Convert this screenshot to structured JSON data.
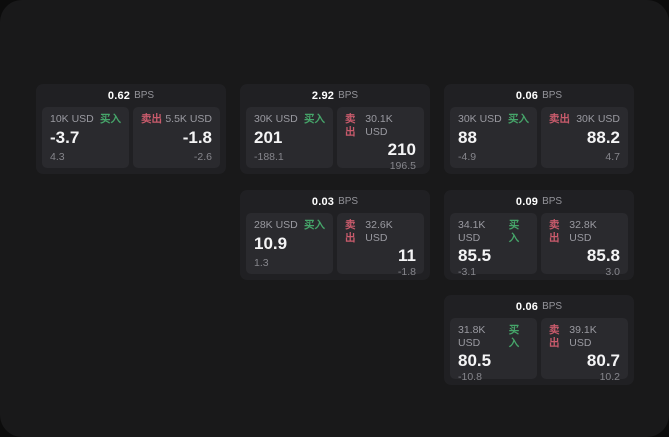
{
  "labels": {
    "bps_unit": "BPS",
    "buy": "买入",
    "sell": "卖出"
  },
  "colors": {
    "buy_green": "#46a56a",
    "sell_red": "#c95b6c",
    "page_bg": "#19191a",
    "card_bg": "#202023",
    "panel_bg": "#2a2a2e"
  },
  "cards": [
    {
      "bps": "0.62",
      "buy": {
        "amount": "10K USD",
        "main": "-3.7",
        "sub": "4.3"
      },
      "sell": {
        "amount": "5.5K USD",
        "main": "-1.8",
        "sub": "-2.6"
      }
    },
    {
      "bps": "2.92",
      "buy": {
        "amount": "30K USD",
        "main": "201",
        "sub": "-188.1"
      },
      "sell": {
        "amount": "30.1K USD",
        "main": "210",
        "sub": "196.5"
      }
    },
    {
      "bps": "0.06",
      "buy": {
        "amount": "30K USD",
        "main": "88",
        "sub": "-4.9"
      },
      "sell": {
        "amount": "30K USD",
        "main": "88.2",
        "sub": "4.7"
      }
    },
    {
      "bps": "0.03",
      "buy": {
        "amount": "28K USD",
        "main": "10.9",
        "sub": "1.3"
      },
      "sell": {
        "amount": "32.6K USD",
        "main": "11",
        "sub": "-1.8"
      }
    },
    {
      "bps": "0.09",
      "buy": {
        "amount": "34.1K USD",
        "main": "85.5",
        "sub": "-3.1"
      },
      "sell": {
        "amount": "32.8K USD",
        "main": "85.8",
        "sub": "3.0"
      }
    },
    {
      "bps": "0.06",
      "buy": {
        "amount": "31.8K USD",
        "main": "80.5",
        "sub": "-10.8"
      },
      "sell": {
        "amount": "39.1K USD",
        "main": "80.7",
        "sub": "10.2"
      }
    }
  ]
}
